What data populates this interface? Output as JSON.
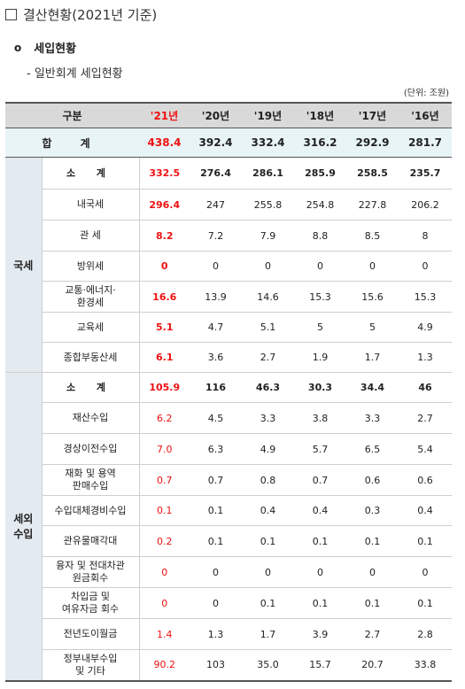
{
  "page": {
    "title": "결산현황(2021년 기준)",
    "section": "세입현황",
    "subsection": "- 일반회계 세입현황",
    "unit": "(단위: 조원)"
  },
  "table": {
    "header": [
      "구분",
      "'21년",
      "'20년",
      "'19년",
      "'18년",
      "'17년",
      "'16년"
    ],
    "total": {
      "label": "합 계",
      "values": [
        "438.4",
        "392.4",
        "332.4",
        "316.2",
        "292.9",
        "281.7"
      ]
    },
    "groups": [
      {
        "name": "국세",
        "rows": [
          {
            "label": "소 계",
            "values": [
              "332.5",
              "276.4",
              "286.1",
              "285.9",
              "258.5",
              "235.7"
            ]
          },
          {
            "label": "내국세",
            "values": [
              "296.4",
              "247",
              "255.8",
              "254.8",
              "227.8",
              "206.2"
            ]
          },
          {
            "label": "관 세",
            "values": [
              "8.2",
              "7.2",
              "7.9",
              "8.8",
              "8.5",
              "8"
            ]
          },
          {
            "label": "방위세",
            "values": [
              "0",
              "0",
              "0",
              "0",
              "0",
              "0"
            ]
          },
          {
            "label": "교통·에너지·\n환경세",
            "values": [
              "16.6",
              "13.9",
              "14.6",
              "15.3",
              "15.6",
              "15.3"
            ]
          },
          {
            "label": "교육세",
            "values": [
              "5.1",
              "4.7",
              "5.1",
              "5",
              "5",
              "4.9"
            ]
          },
          {
            "label": "종합부동산세",
            "values": [
              "6.1",
              "3.6",
              "2.7",
              "1.9",
              "1.7",
              "1.3"
            ]
          }
        ]
      },
      {
        "name": "세외\n수입",
        "rows": [
          {
            "label": "소 계",
            "values": [
              "105.9",
              "116",
              "46.3",
              "30.3",
              "34.4",
              "46"
            ]
          },
          {
            "label": "재산수입",
            "values": [
              "6.2",
              "4.5",
              "3.3",
              "3.8",
              "3.3",
              "2.7"
            ]
          },
          {
            "label": "경상이전수입",
            "values": [
              "7.0",
              "6.3",
              "4.9",
              "5.7",
              "6.5",
              "5.4"
            ]
          },
          {
            "label": "재화 및 용역\n판매수입",
            "values": [
              "0.7",
              "0.7",
              "0.8",
              "0.7",
              "0.6",
              "0.6"
            ]
          },
          {
            "label": "수입대체경비수입",
            "values": [
              "0.1",
              "0.1",
              "0.4",
              "0.4",
              "0.3",
              "0.4"
            ]
          },
          {
            "label": "관유물매각대",
            "values": [
              "0.2",
              "0.1",
              "0.1",
              "0.1",
              "0.1",
              "0.1"
            ]
          },
          {
            "label": "융자 및 전대차관\n원금회수",
            "values": [
              "0",
              "0",
              "0",
              "0",
              "0",
              "0"
            ]
          },
          {
            "label": "차입금 및\n여유자금 회수",
            "values": [
              "0",
              "0",
              "0.1",
              "0.1",
              "0.1",
              "0.1"
            ]
          },
          {
            "label": "전년도이월금",
            "values": [
              "1.4",
              "1.3",
              "1.7",
              "3.9",
              "2.7",
              "2.8"
            ]
          },
          {
            "label": "정부내부수입\n및 기타",
            "values": [
              "90.2",
              "103",
              "35.0",
              "15.7",
              "20.7",
              "33.8"
            ]
          }
        ]
      }
    ]
  },
  "colors": {
    "highlight_year": "#e11111",
    "header_bg": "#d9d9d9",
    "total_bg": "#e8f4f6",
    "group_bg": "#e3eaf0"
  }
}
